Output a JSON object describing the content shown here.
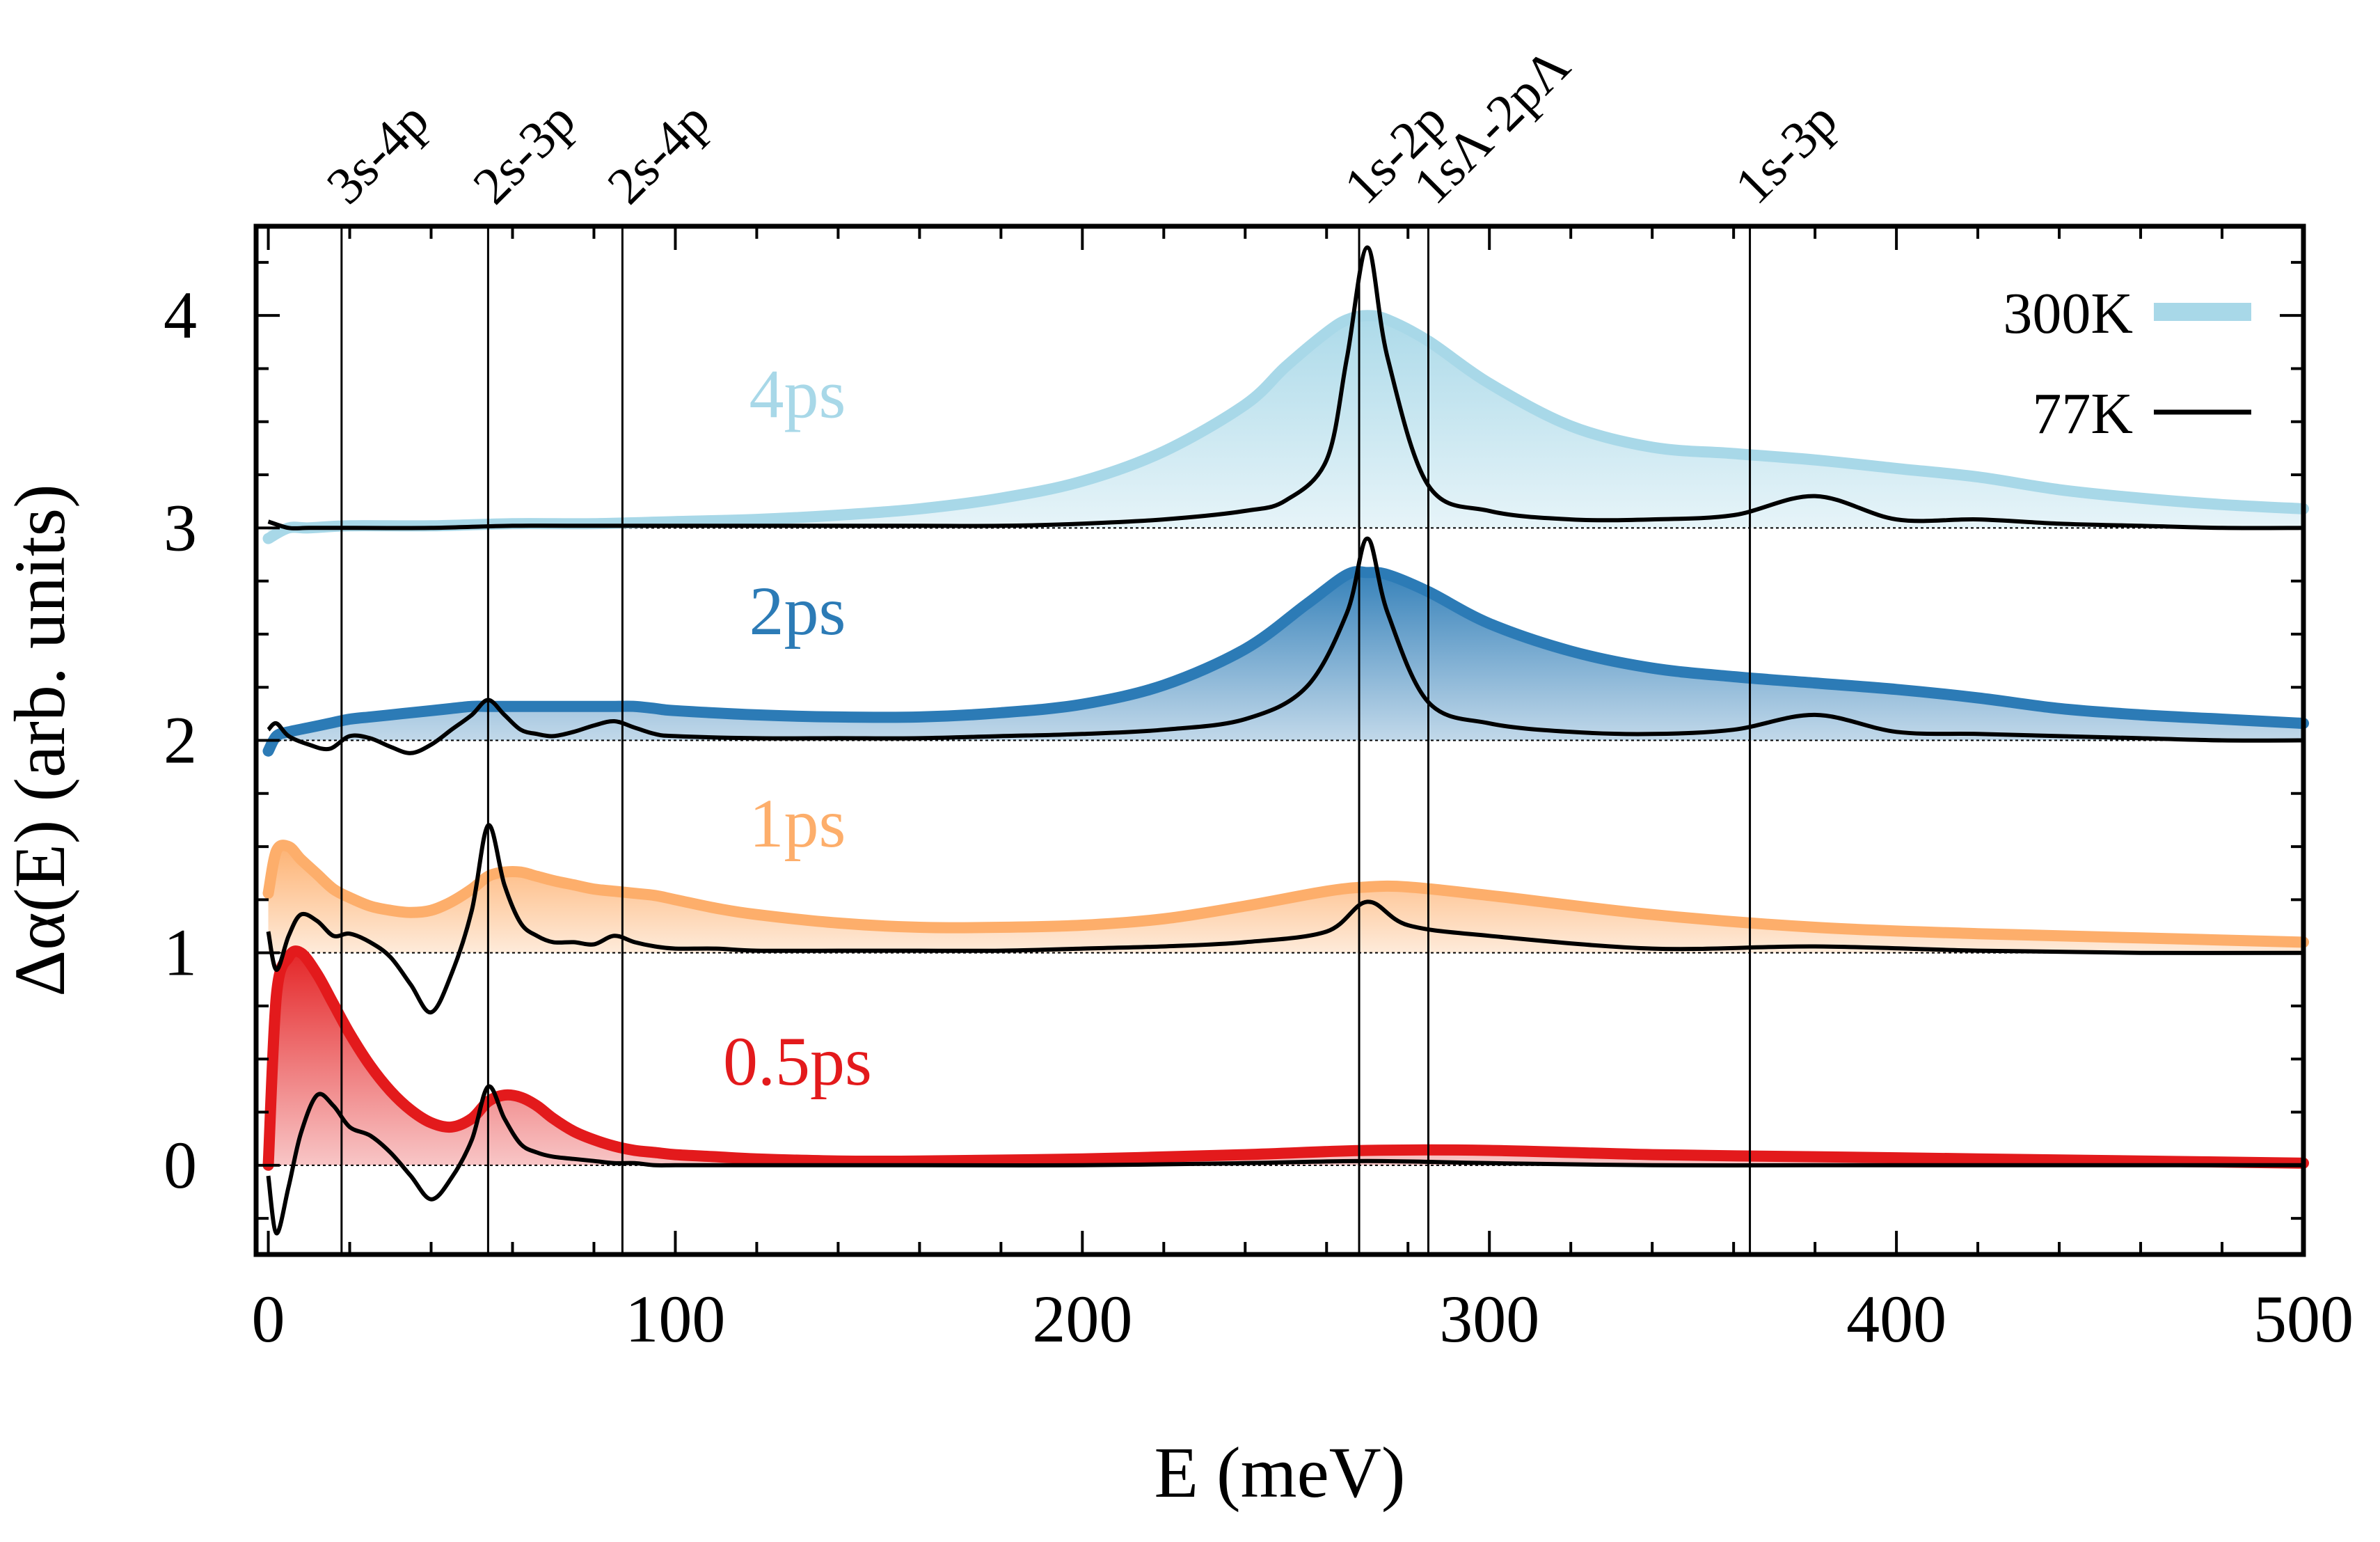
{
  "chart_data": {
    "type": "line",
    "xlabel": "E (meV)",
    "ylabel": "Δα(E) (arb. units)",
    "xlim": [
      -3,
      500
    ],
    "ylim": [
      -0.42,
      4.42
    ],
    "x_ticks": [
      0,
      100,
      200,
      300,
      400,
      500
    ],
    "x_tick_labels": [
      "0",
      "100",
      "200",
      "300",
      "400",
      "500"
    ],
    "y_ticks": [
      0,
      1,
      2,
      3,
      4
    ],
    "y_tick_labels": [
      "0",
      "1",
      "2",
      "3",
      "4"
    ],
    "transitions": [
      {
        "label": "3s-4p",
        "x": 18
      },
      {
        "label": "2s-3p",
        "x": 54
      },
      {
        "label": "2s-4p",
        "x": 87
      },
      {
        "label": "1s-2p",
        "x": 268
      },
      {
        "label": "1sΛ-2pΛ",
        "x": 285
      },
      {
        "label": "1s-3p",
        "x": 364
      }
    ],
    "legend": {
      "position": "top-right",
      "entries": [
        {
          "label": "300K",
          "style": "thick-light-band",
          "color": "#a8d8e8"
        },
        {
          "label": "77K",
          "style": "thin-line",
          "color": "#000000"
        }
      ]
    },
    "series": [
      {
        "name": "0.5ps",
        "offset": 0,
        "color": "#e31a1c",
        "label_x": 130,
        "label_y": 0.38,
        "x": [
          0,
          2,
          5,
          8,
          12,
          16,
          20,
          25,
          30,
          35,
          40,
          45,
          50,
          54,
          58,
          62,
          66,
          70,
          75,
          80,
          85,
          90,
          95,
          100,
          110,
          120,
          140,
          160,
          200,
          240,
          270,
          300,
          340,
          380,
          420,
          460,
          500
        ],
        "values_300K": [
          0,
          0.8,
          0.98,
          1.0,
          0.9,
          0.76,
          0.62,
          0.47,
          0.35,
          0.26,
          0.2,
          0.18,
          0.22,
          0.3,
          0.33,
          0.32,
          0.28,
          0.22,
          0.16,
          0.12,
          0.09,
          0.07,
          0.06,
          0.05,
          0.04,
          0.03,
          0.02,
          0.02,
          0.03,
          0.05,
          0.07,
          0.07,
          0.05,
          0.04,
          0.03,
          0.02,
          0.01
        ],
        "values_77K": [
          -0.05,
          -0.32,
          -0.1,
          0.15,
          0.33,
          0.28,
          0.18,
          0.14,
          0.06,
          -0.05,
          -0.16,
          -0.06,
          0.12,
          0.37,
          0.22,
          0.1,
          0.06,
          0.04,
          0.03,
          0.02,
          0.01,
          0.01,
          0.0,
          0.0,
          0.0,
          0.0,
          0.0,
          0.0,
          0.0,
          0.01,
          0.02,
          0.01,
          0.0,
          0.0,
          0.0,
          0.0,
          0.0
        ]
      },
      {
        "name": "1ps",
        "offset": 1,
        "color": "#fdae6b",
        "label_x": 130,
        "label_y": 1.5,
        "x": [
          0,
          2,
          5,
          8,
          12,
          16,
          20,
          25,
          30,
          35,
          40,
          45,
          50,
          54,
          58,
          62,
          66,
          70,
          75,
          80,
          85,
          90,
          95,
          100,
          110,
          120,
          140,
          160,
          180,
          200,
          220,
          240,
          260,
          270,
          280,
          300,
          340,
          380,
          420,
          460,
          500
        ],
        "values_300K": [
          0.28,
          0.48,
          0.5,
          0.44,
          0.37,
          0.3,
          0.26,
          0.22,
          0.2,
          0.19,
          0.2,
          0.24,
          0.3,
          0.36,
          0.38,
          0.38,
          0.36,
          0.34,
          0.32,
          0.3,
          0.29,
          0.28,
          0.27,
          0.25,
          0.21,
          0.18,
          0.14,
          0.12,
          0.12,
          0.13,
          0.16,
          0.22,
          0.29,
          0.31,
          0.31,
          0.27,
          0.18,
          0.12,
          0.09,
          0.07,
          0.05
        ],
        "values_77K": [
          0.1,
          -0.08,
          0.08,
          0.18,
          0.15,
          0.08,
          0.09,
          0.05,
          -0.02,
          -0.15,
          -0.28,
          -0.1,
          0.2,
          0.6,
          0.32,
          0.14,
          0.08,
          0.05,
          0.05,
          0.04,
          0.08,
          0.05,
          0.03,
          0.02,
          0.02,
          0.01,
          0.01,
          0.01,
          0.01,
          0.02,
          0.03,
          0.05,
          0.1,
          0.24,
          0.13,
          0.08,
          0.02,
          0.03,
          0.01,
          0.0,
          0.0
        ]
      },
      {
        "name": "2ps",
        "offset": 2,
        "color": "#2c7bb6",
        "label_x": 130,
        "label_y": 2.5,
        "x": [
          0,
          2,
          5,
          10,
          15,
          20,
          25,
          30,
          35,
          40,
          45,
          50,
          54,
          58,
          62,
          66,
          70,
          75,
          80,
          85,
          90,
          95,
          100,
          120,
          140,
          160,
          180,
          200,
          220,
          240,
          255,
          265,
          270,
          275,
          285,
          300,
          320,
          340,
          360,
          380,
          400,
          420,
          440,
          460,
          480,
          500
        ],
        "values_300K": [
          -0.05,
          0.02,
          0.04,
          0.06,
          0.08,
          0.1,
          0.11,
          0.12,
          0.13,
          0.14,
          0.15,
          0.16,
          0.16,
          0.16,
          0.16,
          0.16,
          0.16,
          0.16,
          0.16,
          0.16,
          0.16,
          0.15,
          0.14,
          0.12,
          0.11,
          0.11,
          0.13,
          0.17,
          0.26,
          0.43,
          0.64,
          0.78,
          0.79,
          0.78,
          0.7,
          0.55,
          0.42,
          0.34,
          0.3,
          0.27,
          0.24,
          0.2,
          0.15,
          0.12,
          0.1,
          0.08
        ],
        "values_77K": [
          0.05,
          0.08,
          0.02,
          -0.02,
          -0.04,
          0.02,
          0.01,
          -0.03,
          -0.06,
          -0.02,
          0.05,
          0.12,
          0.19,
          0.12,
          0.05,
          0.03,
          0.02,
          0.04,
          0.07,
          0.09,
          0.06,
          0.03,
          0.02,
          0.01,
          0.01,
          0.01,
          0.02,
          0.03,
          0.05,
          0.1,
          0.25,
          0.6,
          0.95,
          0.6,
          0.18,
          0.08,
          0.04,
          0.03,
          0.05,
          0.12,
          0.04,
          0.03,
          0.02,
          0.01,
          0.0,
          0.0
        ]
      },
      {
        "name": "4ps",
        "offset": 3,
        "color": "#a8d8e8",
        "label_x": 130,
        "label_y": 3.52,
        "x": [
          0,
          5,
          10,
          20,
          40,
          60,
          80,
          100,
          120,
          140,
          160,
          180,
          200,
          220,
          240,
          250,
          260,
          265,
          270,
          275,
          285,
          300,
          320,
          340,
          360,
          380,
          400,
          420,
          440,
          460,
          480,
          500
        ],
        "values_300K": [
          -0.05,
          0.0,
          0.0,
          0.01,
          0.01,
          0.02,
          0.02,
          0.03,
          0.04,
          0.06,
          0.09,
          0.14,
          0.22,
          0.36,
          0.58,
          0.76,
          0.92,
          0.98,
          1.0,
          0.98,
          0.88,
          0.68,
          0.48,
          0.38,
          0.35,
          0.32,
          0.28,
          0.24,
          0.18,
          0.14,
          0.11,
          0.09
        ],
        "values_77K": [
          0.03,
          0.0,
          0.0,
          0.0,
          0.0,
          0.01,
          0.01,
          0.01,
          0.01,
          0.01,
          0.01,
          0.01,
          0.02,
          0.04,
          0.08,
          0.13,
          0.32,
          0.8,
          1.32,
          0.8,
          0.2,
          0.08,
          0.04,
          0.04,
          0.06,
          0.15,
          0.04,
          0.04,
          0.02,
          0.01,
          0.0,
          0.0
        ]
      }
    ]
  }
}
